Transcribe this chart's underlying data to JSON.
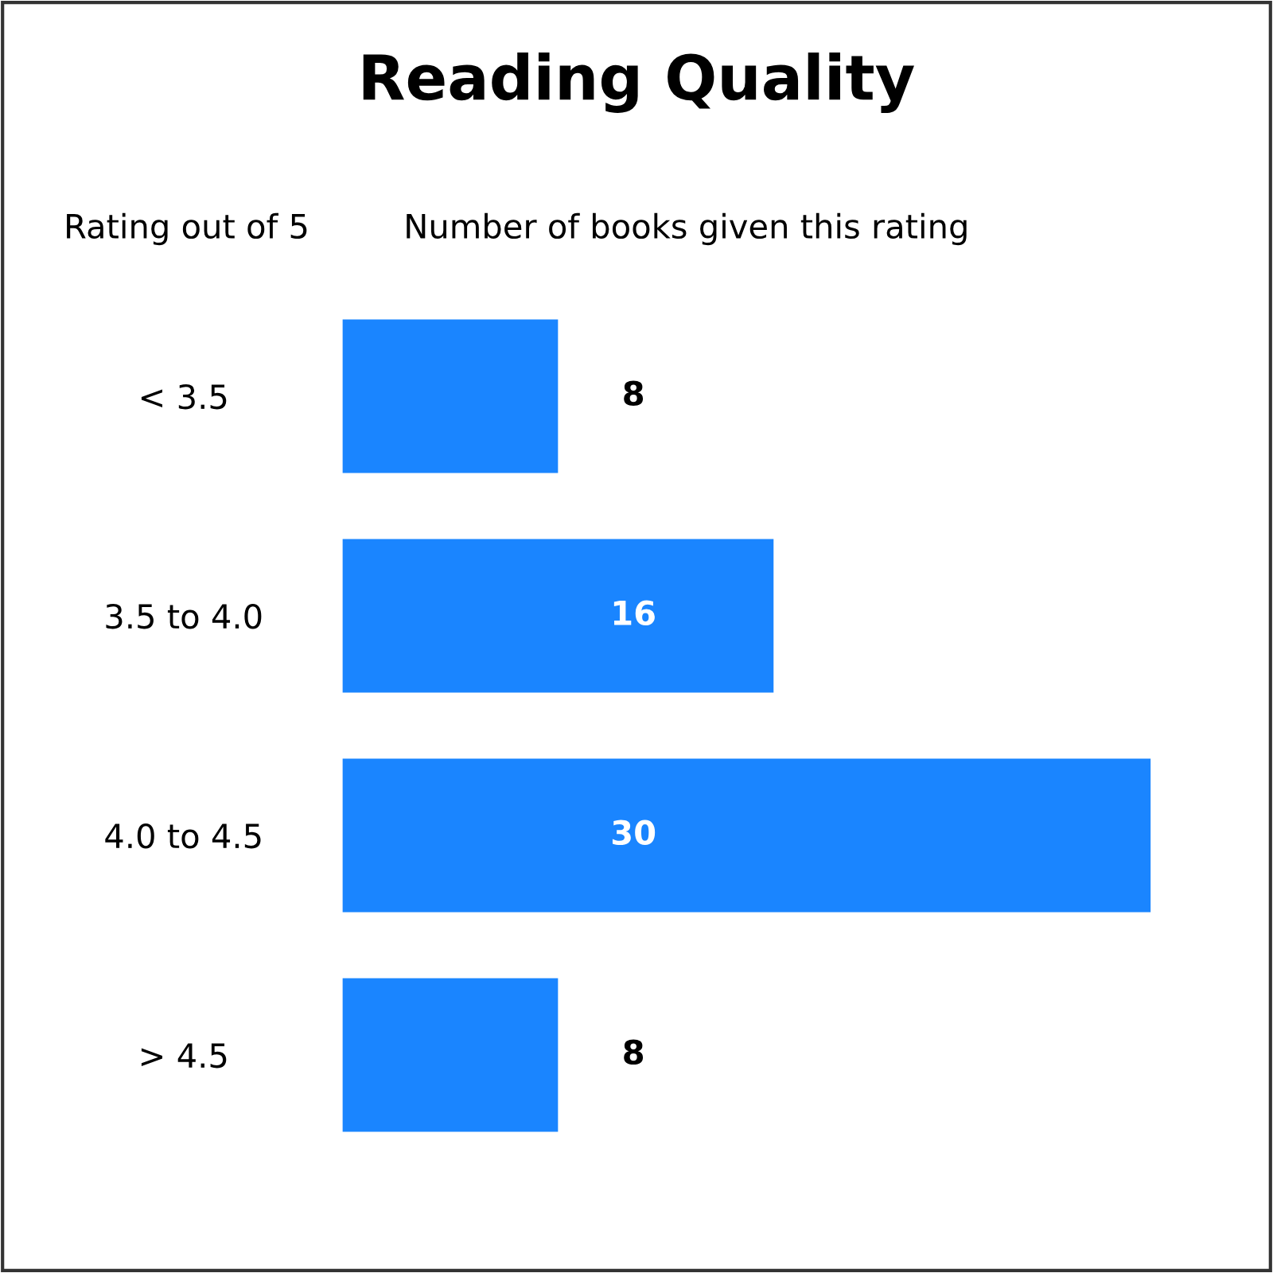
{
  "chart_data": {
    "type": "bar",
    "orientation": "horizontal",
    "title": "Reading Quality",
    "ylabel": "Rating out of 5",
    "xlabel": "Number of books given this rating",
    "categories": [
      "< 3.5",
      "3.5 to 4.0",
      "4.0 to 4.5",
      "> 4.5"
    ],
    "values": [
      8,
      16,
      30,
      8
    ],
    "color": "#1a85ff",
    "data_labels": true
  }
}
